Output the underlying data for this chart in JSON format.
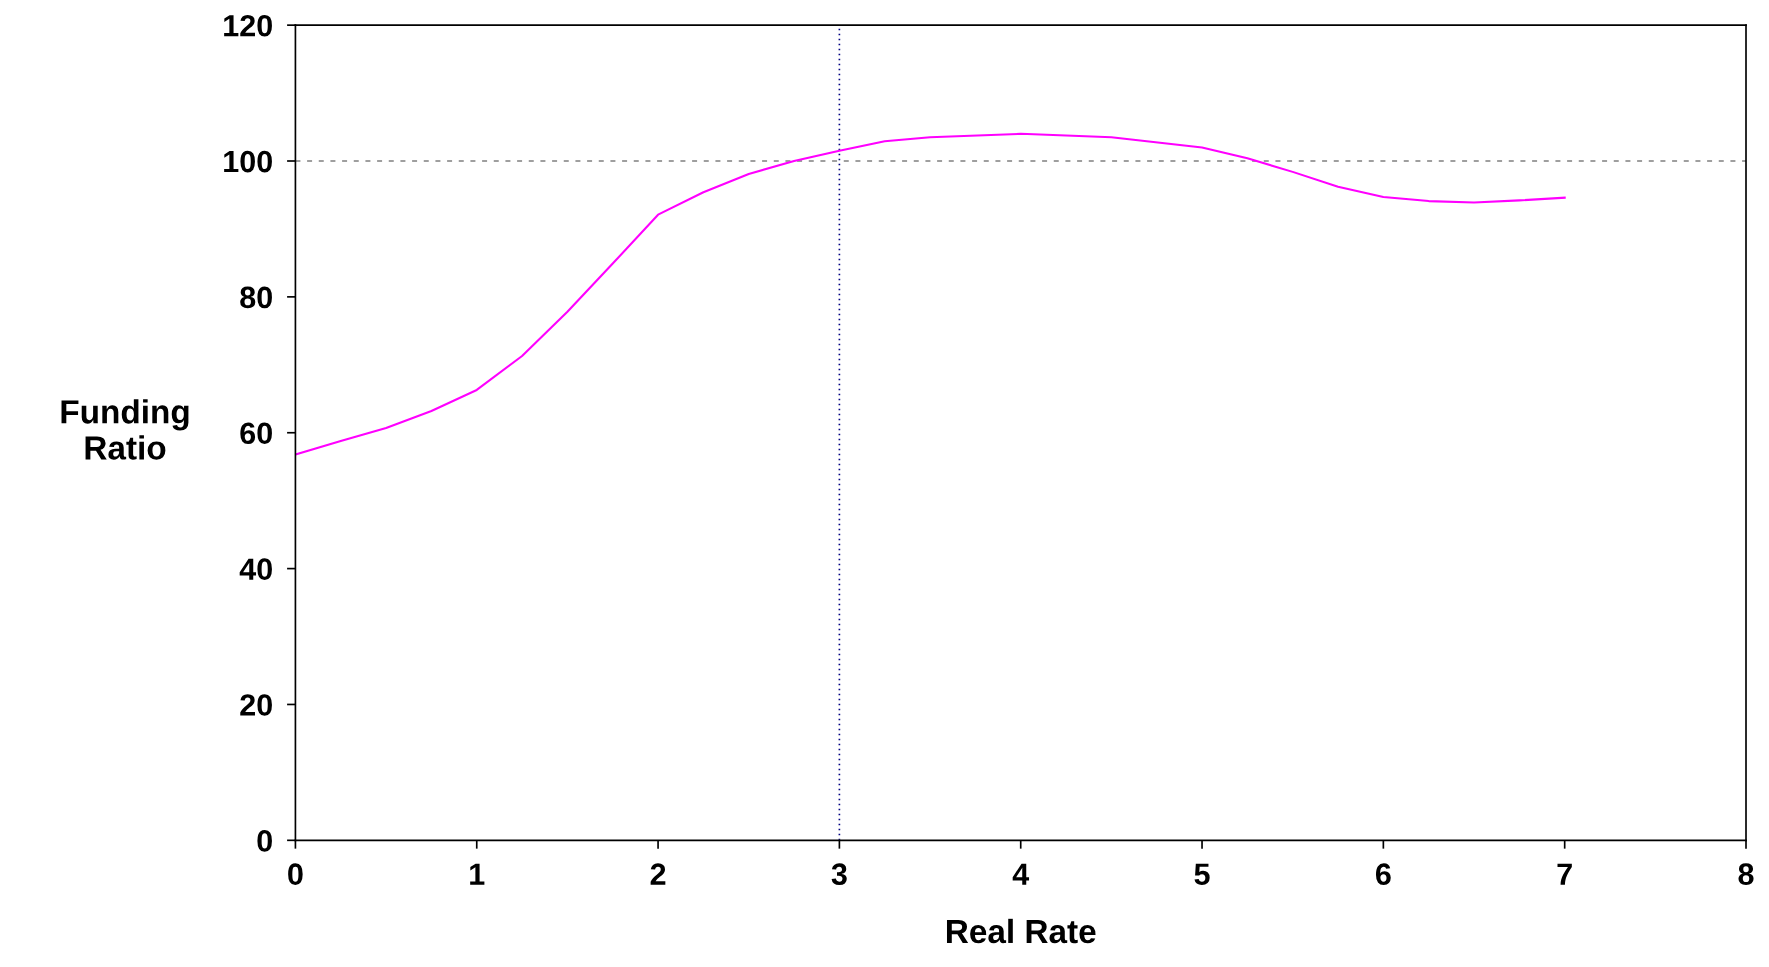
{
  "chart_data": {
    "type": "line",
    "xlabel": "Real Rate",
    "ylabel": "Funding\nRatio",
    "x": [
      0,
      0.25,
      0.5,
      0.75,
      1,
      1.25,
      1.5,
      1.75,
      2,
      2.25,
      2.5,
      2.75,
      3,
      3.25,
      3.5,
      4,
      4.5,
      5,
      5.25,
      5.5,
      5.75,
      6,
      6.25,
      6.5,
      6.75,
      7
    ],
    "series": [
      {
        "color": "#ff00ff",
        "values": [
          56.8,
          58.8,
          60.7,
          63.2,
          66.3,
          71.3,
          77.8,
          84.9,
          92.1,
          95.4,
          98.1,
          100.0,
          101.5,
          102.9,
          103.5,
          104.0,
          103.5,
          102.0,
          100.4,
          98.4,
          96.2,
          94.7,
          94.1,
          93.9,
          94.2,
          94.6
        ]
      }
    ],
    "xlim": [
      0,
      8
    ],
    "xticks": [
      0,
      1,
      2,
      3,
      4,
      5,
      6,
      7,
      8
    ],
    "ylim": [
      0,
      120
    ],
    "yticks": [
      0,
      20,
      40,
      60,
      80,
      100,
      120
    ],
    "ref_lines": [
      {
        "axis": "y",
        "value": 100,
        "color": "#808080",
        "line_style": "dashed"
      },
      {
        "axis": "x",
        "value": 3,
        "color": "#000080",
        "line_style": "dotted"
      }
    ],
    "grid": false,
    "marker": "none",
    "line_style": "solid"
  }
}
